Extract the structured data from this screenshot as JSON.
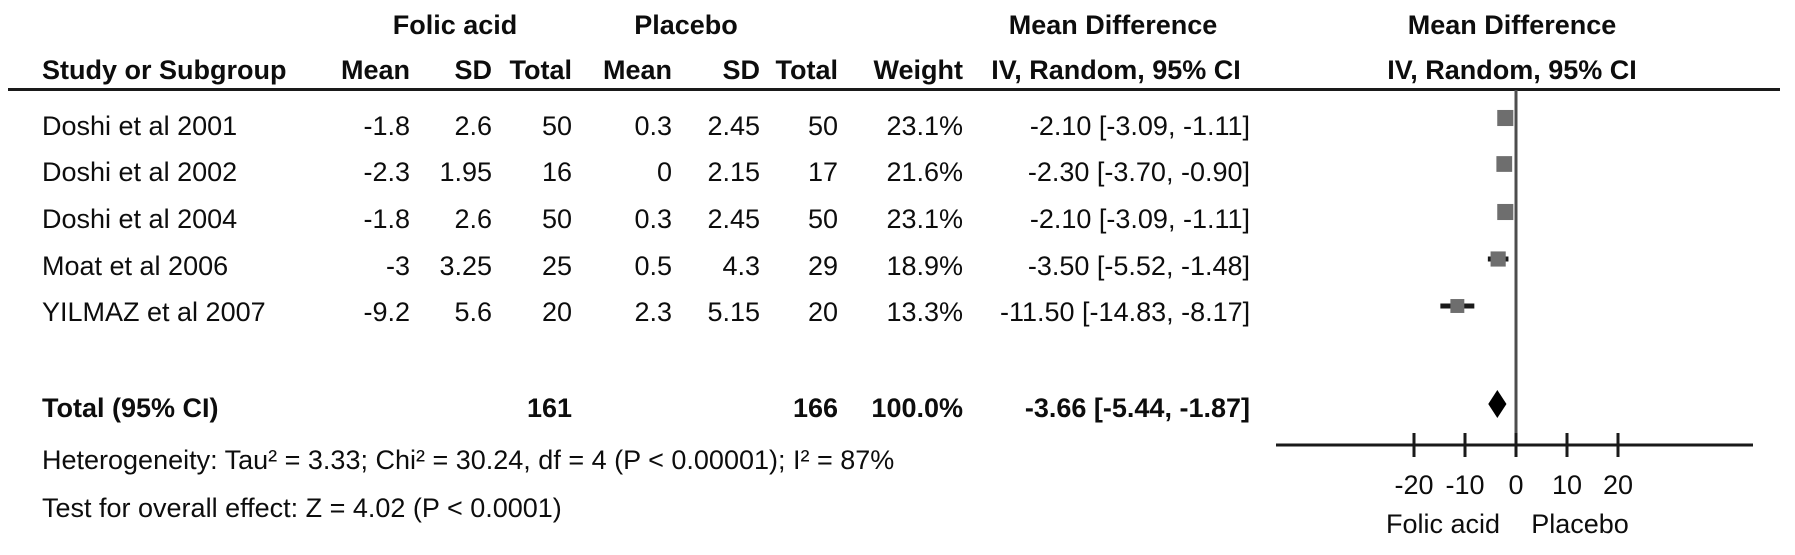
{
  "table": {
    "group_headers": {
      "folic_acid": "Folic acid",
      "placebo": "Placebo",
      "mean_difference_text": "Mean Difference",
      "mean_difference_plot": "Mean Difference"
    },
    "column_headers": {
      "study": "Study or Subgroup",
      "fa_mean": "Mean",
      "fa_sd": "SD",
      "fa_total": "Total",
      "p_mean": "Mean",
      "p_sd": "SD",
      "p_total": "Total",
      "weight": "Weight",
      "ci_text": "IV, Random, 95% CI",
      "ci_plot": "IV, Random, 95% CI"
    },
    "rows": [
      {
        "study": "Doshi et al 2001",
        "fa_mean": "-1.8",
        "fa_sd": "2.6",
        "fa_total": "50",
        "p_mean": "0.3",
        "p_sd": "2.45",
        "p_total": "50",
        "weight": "23.1%",
        "ci": "-2.10 [-3.09, -1.11]"
      },
      {
        "study": "Doshi et al 2002",
        "fa_mean": "-2.3",
        "fa_sd": "1.95",
        "fa_total": "16",
        "p_mean": "0",
        "p_sd": "2.15",
        "p_total": "17",
        "weight": "21.6%",
        "ci": "-2.30 [-3.70, -0.90]"
      },
      {
        "study": "Doshi et al 2004",
        "fa_mean": "-1.8",
        "fa_sd": "2.6",
        "fa_total": "50",
        "p_mean": "0.3",
        "p_sd": "2.45",
        "p_total": "50",
        "weight": "23.1%",
        "ci": "-2.10 [-3.09, -1.11]"
      },
      {
        "study": "Moat et al 2006",
        "fa_mean": "-3",
        "fa_sd": "3.25",
        "fa_total": "25",
        "p_mean": "0.5",
        "p_sd": "4.3",
        "p_total": "29",
        "weight": "18.9%",
        "ci": "-3.50 [-5.52, -1.48]"
      },
      {
        "study": "YILMAZ et al 2007",
        "fa_mean": "-9.2",
        "fa_sd": "5.6",
        "fa_total": "20",
        "p_mean": "2.3",
        "p_sd": "5.15",
        "p_total": "20",
        "weight": "13.3%",
        "ci": "-11.50 [-14.83, -8.17]"
      }
    ],
    "total_row": {
      "label": "Total (95% CI)",
      "fa_total": "161",
      "p_total": "166",
      "weight": "100.0%",
      "ci": "-3.66 [-5.44, -1.87]"
    },
    "heterogeneity": "Heterogeneity: Tau² = 3.33; Chi² = 30.24, df = 4 (P < 0.00001); I² = 87%",
    "overall_effect": "Test for overall effect: Z = 4.02 (P < 0.0001)"
  },
  "chart_data": {
    "type": "scatter",
    "subtype": "forest-plot",
    "title": "Mean Difference",
    "subtitle": "IV, Random, 95% CI",
    "xlim": [
      -20,
      20
    ],
    "ticks": [
      -20,
      -10,
      0,
      10,
      20
    ],
    "zero_line_at": 0,
    "axis_label_left": "Folic acid",
    "axis_label_right": "Placebo",
    "studies": [
      {
        "name": "Doshi et al 2001",
        "estimate": -2.1,
        "ci_low": -3.09,
        "ci_high": -1.11,
        "weight_pct": 23.1
      },
      {
        "name": "Doshi et al 2002",
        "estimate": -2.3,
        "ci_low": -3.7,
        "ci_high": -0.9,
        "weight_pct": 21.6
      },
      {
        "name": "Doshi et al 2004",
        "estimate": -2.1,
        "ci_low": -3.09,
        "ci_high": -1.11,
        "weight_pct": 23.1
      },
      {
        "name": "Moat et al 2006",
        "estimate": -3.5,
        "ci_low": -5.52,
        "ci_high": -1.48,
        "weight_pct": 18.9
      },
      {
        "name": "YILMAZ et al 2007",
        "estimate": -11.5,
        "ci_low": -14.83,
        "ci_high": -8.17,
        "weight_pct": 13.3
      }
    ],
    "total": {
      "name": "Total (95% CI)",
      "estimate": -3.66,
      "ci_low": -5.44,
      "ci_high": -1.87
    }
  },
  "colors": {
    "text": "#0d0d0d",
    "rule_line": "#1a1a1a",
    "zero_line": "#4d4d4d",
    "ci_line": "#1a1a1a",
    "marker_square": "#6e6e6e",
    "diamond": "#000000"
  }
}
